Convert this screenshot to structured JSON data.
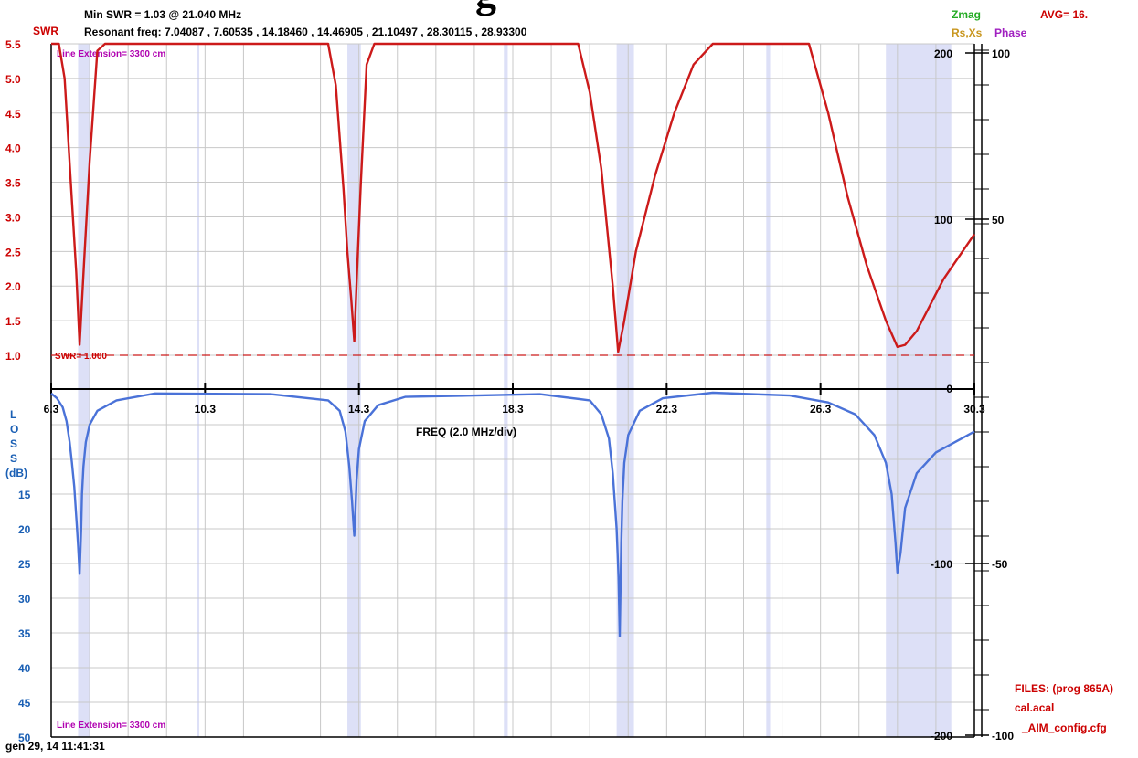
{
  "header": {
    "min_swr": "Min SWR =   1.03 @  21.040 MHz",
    "resonant": "Resonant freq:  7.04087 , 7.60535 , 14.18460 , 14.46905 , 21.10497 , 28.30115 , 28.93300",
    "swr_label": "SWR",
    "zmag_label": "Zmag",
    "rsxs_label": "Rs,Xs",
    "phase_label": "Phase",
    "avg_label": "AVG= 16.",
    "partial_title": "g"
  },
  "files": {
    "title": "FILES:  (prog 865A)",
    "file1": "cal.acal",
    "file2": "_AIM_config.cfg"
  },
  "timestamp": "gen 29, 14  11:41:31",
  "colors": {
    "swr": "#cc1a1a",
    "loss": "#4a72d8",
    "band": "#dde0f7",
    "swr_axis": "#cc0000",
    "loss_axis": "#1a5fb4",
    "zmag": "#22aa22",
    "rsxs": "#c8961e",
    "phase": "#a020c0",
    "magenta_text": "#b000b0"
  },
  "chart_data": [
    {
      "type": "line",
      "title": "SWR",
      "xlabel": "FREQ (2.0 MHz/div)",
      "ylabel": "SWR",
      "xlim": [
        6.3,
        30.3
      ],
      "ylim": [
        1.0,
        5.5
      ],
      "x_ticks": [
        "6.3",
        "10.3",
        "14.3",
        "18.3",
        "22.3",
        "26.3",
        "30.3"
      ],
      "y_ticks": [
        "1.0",
        "1.5",
        "2.0",
        "2.5",
        "3.0",
        "3.5",
        "4.0",
        "4.5",
        "5.0",
        "5.5"
      ],
      "right_axis_zmag_ticks": [
        "200",
        "100",
        "0"
      ],
      "right_axis_phase_ticks": [
        "100",
        "50"
      ],
      "annotations": [
        "Line Extension= 3300 cm",
        "SWR= 1.000"
      ],
      "reference_line": 1.0,
      "band_segments": [
        [
          7.0,
          7.3
        ],
        [
          10.1,
          10.15
        ],
        [
          14.0,
          14.35
        ],
        [
          18.068,
          18.168
        ],
        [
          21.0,
          21.45
        ],
        [
          24.89,
          24.99
        ],
        [
          28.0,
          29.7
        ]
      ],
      "series": [
        {
          "name": "SWR",
          "x": [
            6.3,
            6.5,
            6.65,
            6.8,
            6.95,
            7.04,
            7.15,
            7.3,
            7.5,
            7.7,
            13.3,
            13.5,
            13.7,
            13.9,
            14.0,
            14.1,
            14.18,
            14.25,
            14.35,
            14.5,
            14.7,
            20.0,
            20.3,
            20.6,
            20.9,
            21.04,
            21.2,
            21.5,
            22.0,
            22.5,
            23.0,
            23.5,
            26.0,
            26.5,
            27.0,
            27.5,
            28.0,
            28.3,
            28.5,
            28.8,
            29.5,
            30.3
          ],
          "y": [
            5.5,
            5.5,
            5.0,
            3.6,
            2.2,
            1.15,
            2.3,
            3.8,
            5.4,
            5.5,
            5.5,
            5.5,
            4.9,
            3.4,
            2.5,
            1.8,
            1.2,
            2.2,
            3.5,
            5.2,
            5.5,
            5.5,
            4.8,
            3.7,
            2.0,
            1.05,
            1.5,
            2.5,
            3.6,
            4.5,
            5.2,
            5.5,
            5.5,
            4.5,
            3.3,
            2.3,
            1.5,
            1.12,
            1.15,
            1.35,
            2.1,
            2.75
          ]
        }
      ]
    },
    {
      "type": "line",
      "title": "LOSS",
      "xlabel": "FREQ (2.0 MHz/div)",
      "ylabel": "L O S S (dB)",
      "xlim": [
        6.3,
        30.3
      ],
      "ylim": [
        0,
        50
      ],
      "y_ticks": [
        "15",
        "20",
        "25",
        "30",
        "35",
        "40",
        "45",
        "50"
      ],
      "right_axis_zmag_ticks": [
        "-100",
        "-200"
      ],
      "right_axis_phase_ticks": [
        "-50",
        "-100"
      ],
      "annotations": [
        "Line Extension= 3300 cm"
      ],
      "series": [
        {
          "name": "Return Loss",
          "x": [
            6.3,
            6.45,
            6.6,
            6.7,
            6.78,
            6.84,
            6.9,
            6.96,
            7.0,
            7.04,
            7.08,
            7.1,
            7.14,
            7.2,
            7.3,
            7.5,
            8.0,
            9.0,
            12.0,
            13.5,
            13.8,
            13.95,
            14.05,
            14.12,
            14.16,
            14.18,
            14.2,
            14.24,
            14.3,
            14.45,
            14.8,
            15.5,
            19.0,
            20.3,
            20.6,
            20.8,
            20.9,
            21.0,
            21.05,
            21.08,
            21.1,
            21.12,
            21.15,
            21.2,
            21.3,
            21.6,
            22.2,
            23.5,
            25.5,
            26.5,
            27.2,
            27.7,
            28.0,
            28.15,
            28.25,
            28.3,
            28.38,
            28.5,
            28.8,
            29.3,
            30.3
          ],
          "y": [
            0.5,
            1.2,
            2.5,
            4.5,
            7.5,
            10.5,
            14.0,
            19.0,
            22.5,
            26.5,
            20.0,
            15.0,
            11.0,
            7.5,
            5.0,
            3.0,
            1.5,
            0.5,
            0.6,
            1.5,
            3.0,
            6.0,
            11.0,
            16.0,
            19.5,
            21.0,
            18.5,
            13.0,
            8.5,
            4.5,
            2.2,
            1.0,
            0.6,
            1.5,
            3.5,
            7.0,
            12.0,
            20.0,
            27.0,
            35.5,
            29.0,
            22.0,
            16.0,
            10.5,
            6.5,
            3.0,
            1.2,
            0.4,
            0.8,
            1.8,
            3.5,
            6.5,
            10.5,
            15.0,
            22.0,
            26.3,
            23.5,
            17.0,
            12.0,
            9.0,
            6.0
          ]
        }
      ]
    }
  ]
}
